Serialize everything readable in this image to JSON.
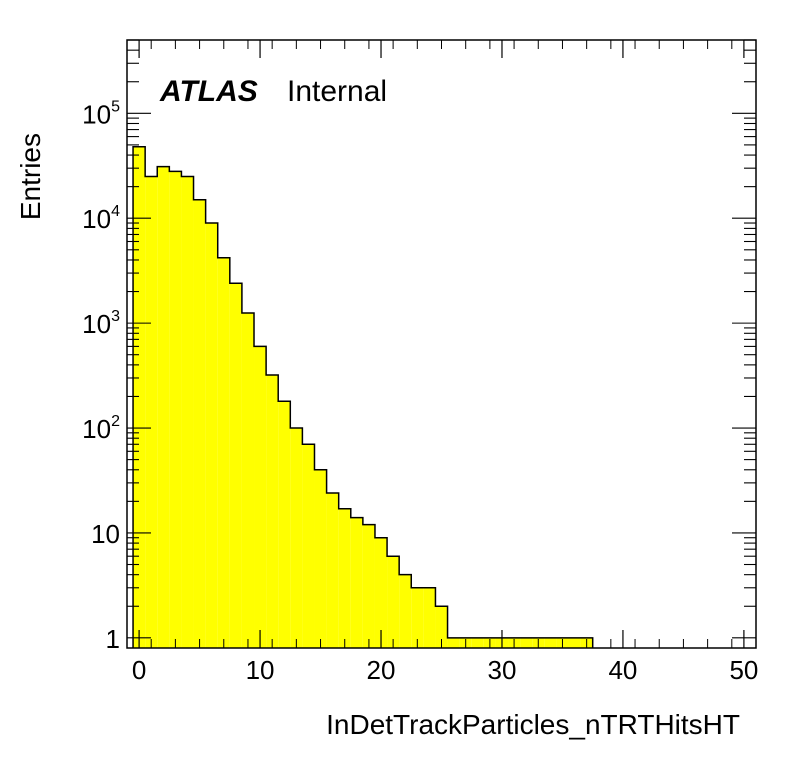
{
  "chart_data": {
    "type": "bar",
    "style": "histogram-step",
    "xlabel": "InDetTrackParticles_nTRTHitsHT",
    "ylabel": "Entries",
    "atlas_label": "ATLAS",
    "atlas_sublabel": "Internal",
    "fill_color": "#ffff00",
    "line_color": "#000000",
    "xlim": [
      -1,
      51
    ],
    "ylim": [
      0.8,
      500000
    ],
    "yscale": "log",
    "grid": false,
    "x_ticks": [
      {
        "value": 0,
        "label": "0"
      },
      {
        "value": 10,
        "label": "10"
      },
      {
        "value": 20,
        "label": "20"
      },
      {
        "value": 30,
        "label": "30"
      },
      {
        "value": 40,
        "label": "40"
      },
      {
        "value": 50,
        "label": "50"
      }
    ],
    "y_ticks": [
      {
        "value": 1,
        "base": "1",
        "exp": ""
      },
      {
        "value": 10,
        "base": "10",
        "exp": ""
      },
      {
        "value": 100,
        "base": "10",
        "exp": "2"
      },
      {
        "value": 1000,
        "base": "10",
        "exp": "3"
      },
      {
        "value": 10000,
        "base": "10",
        "exp": "4"
      },
      {
        "value": 100000,
        "base": "10",
        "exp": "5"
      }
    ],
    "bin_width": 1,
    "bin_low_edges": [
      -0.5,
      0.5,
      1.5,
      2.5,
      3.5,
      4.5,
      5.5,
      6.5,
      7.5,
      8.5,
      9.5,
      10.5,
      11.5,
      12.5,
      13.5,
      14.5,
      15.5,
      16.5,
      17.5,
      18.5,
      19.5,
      20.5,
      21.5,
      22.5,
      23.5,
      24.5,
      25.5,
      26.5,
      27.5,
      28.5,
      29.5,
      30.5,
      31.5,
      32.5,
      33.5,
      34.5,
      35.5,
      36.5
    ],
    "values": [
      48000,
      25000,
      31000,
      28000,
      25000,
      15000,
      9000,
      4200,
      2400,
      1250,
      600,
      320,
      180,
      100,
      70,
      40,
      24,
      17,
      14,
      12,
      9,
      6,
      4,
      3,
      3,
      2,
      1,
      1,
      1,
      1,
      1,
      1,
      1,
      1,
      1,
      1,
      1,
      1
    ]
  }
}
